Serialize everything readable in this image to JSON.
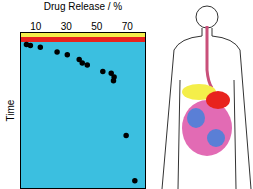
{
  "chart_data": {
    "type": "scatter",
    "x_label": "Drug Release / %",
    "y_label": "Time",
    "x": [
      3.9,
      6.5,
      13,
      24,
      30.7,
      38.5,
      40.5,
      43.8,
      54,
      59.5,
      61.4,
      61,
      69.3,
      75
    ],
    "values": [
      7.7,
      8.3,
      9.5,
      12.5,
      14.3,
      17.3,
      19.6,
      20.8,
      25,
      26.2,
      28.6,
      31,
      66,
      95
    ],
    "xlim": [
      0,
      82
    ],
    "xticks": [
      10,
      30,
      50,
      70
    ],
    "ylim": [
      0,
      100
    ],
    "yticks": [],
    "tick_labels": "x",
    "color": "#000000",
    "marker": "circle"
  }
}
